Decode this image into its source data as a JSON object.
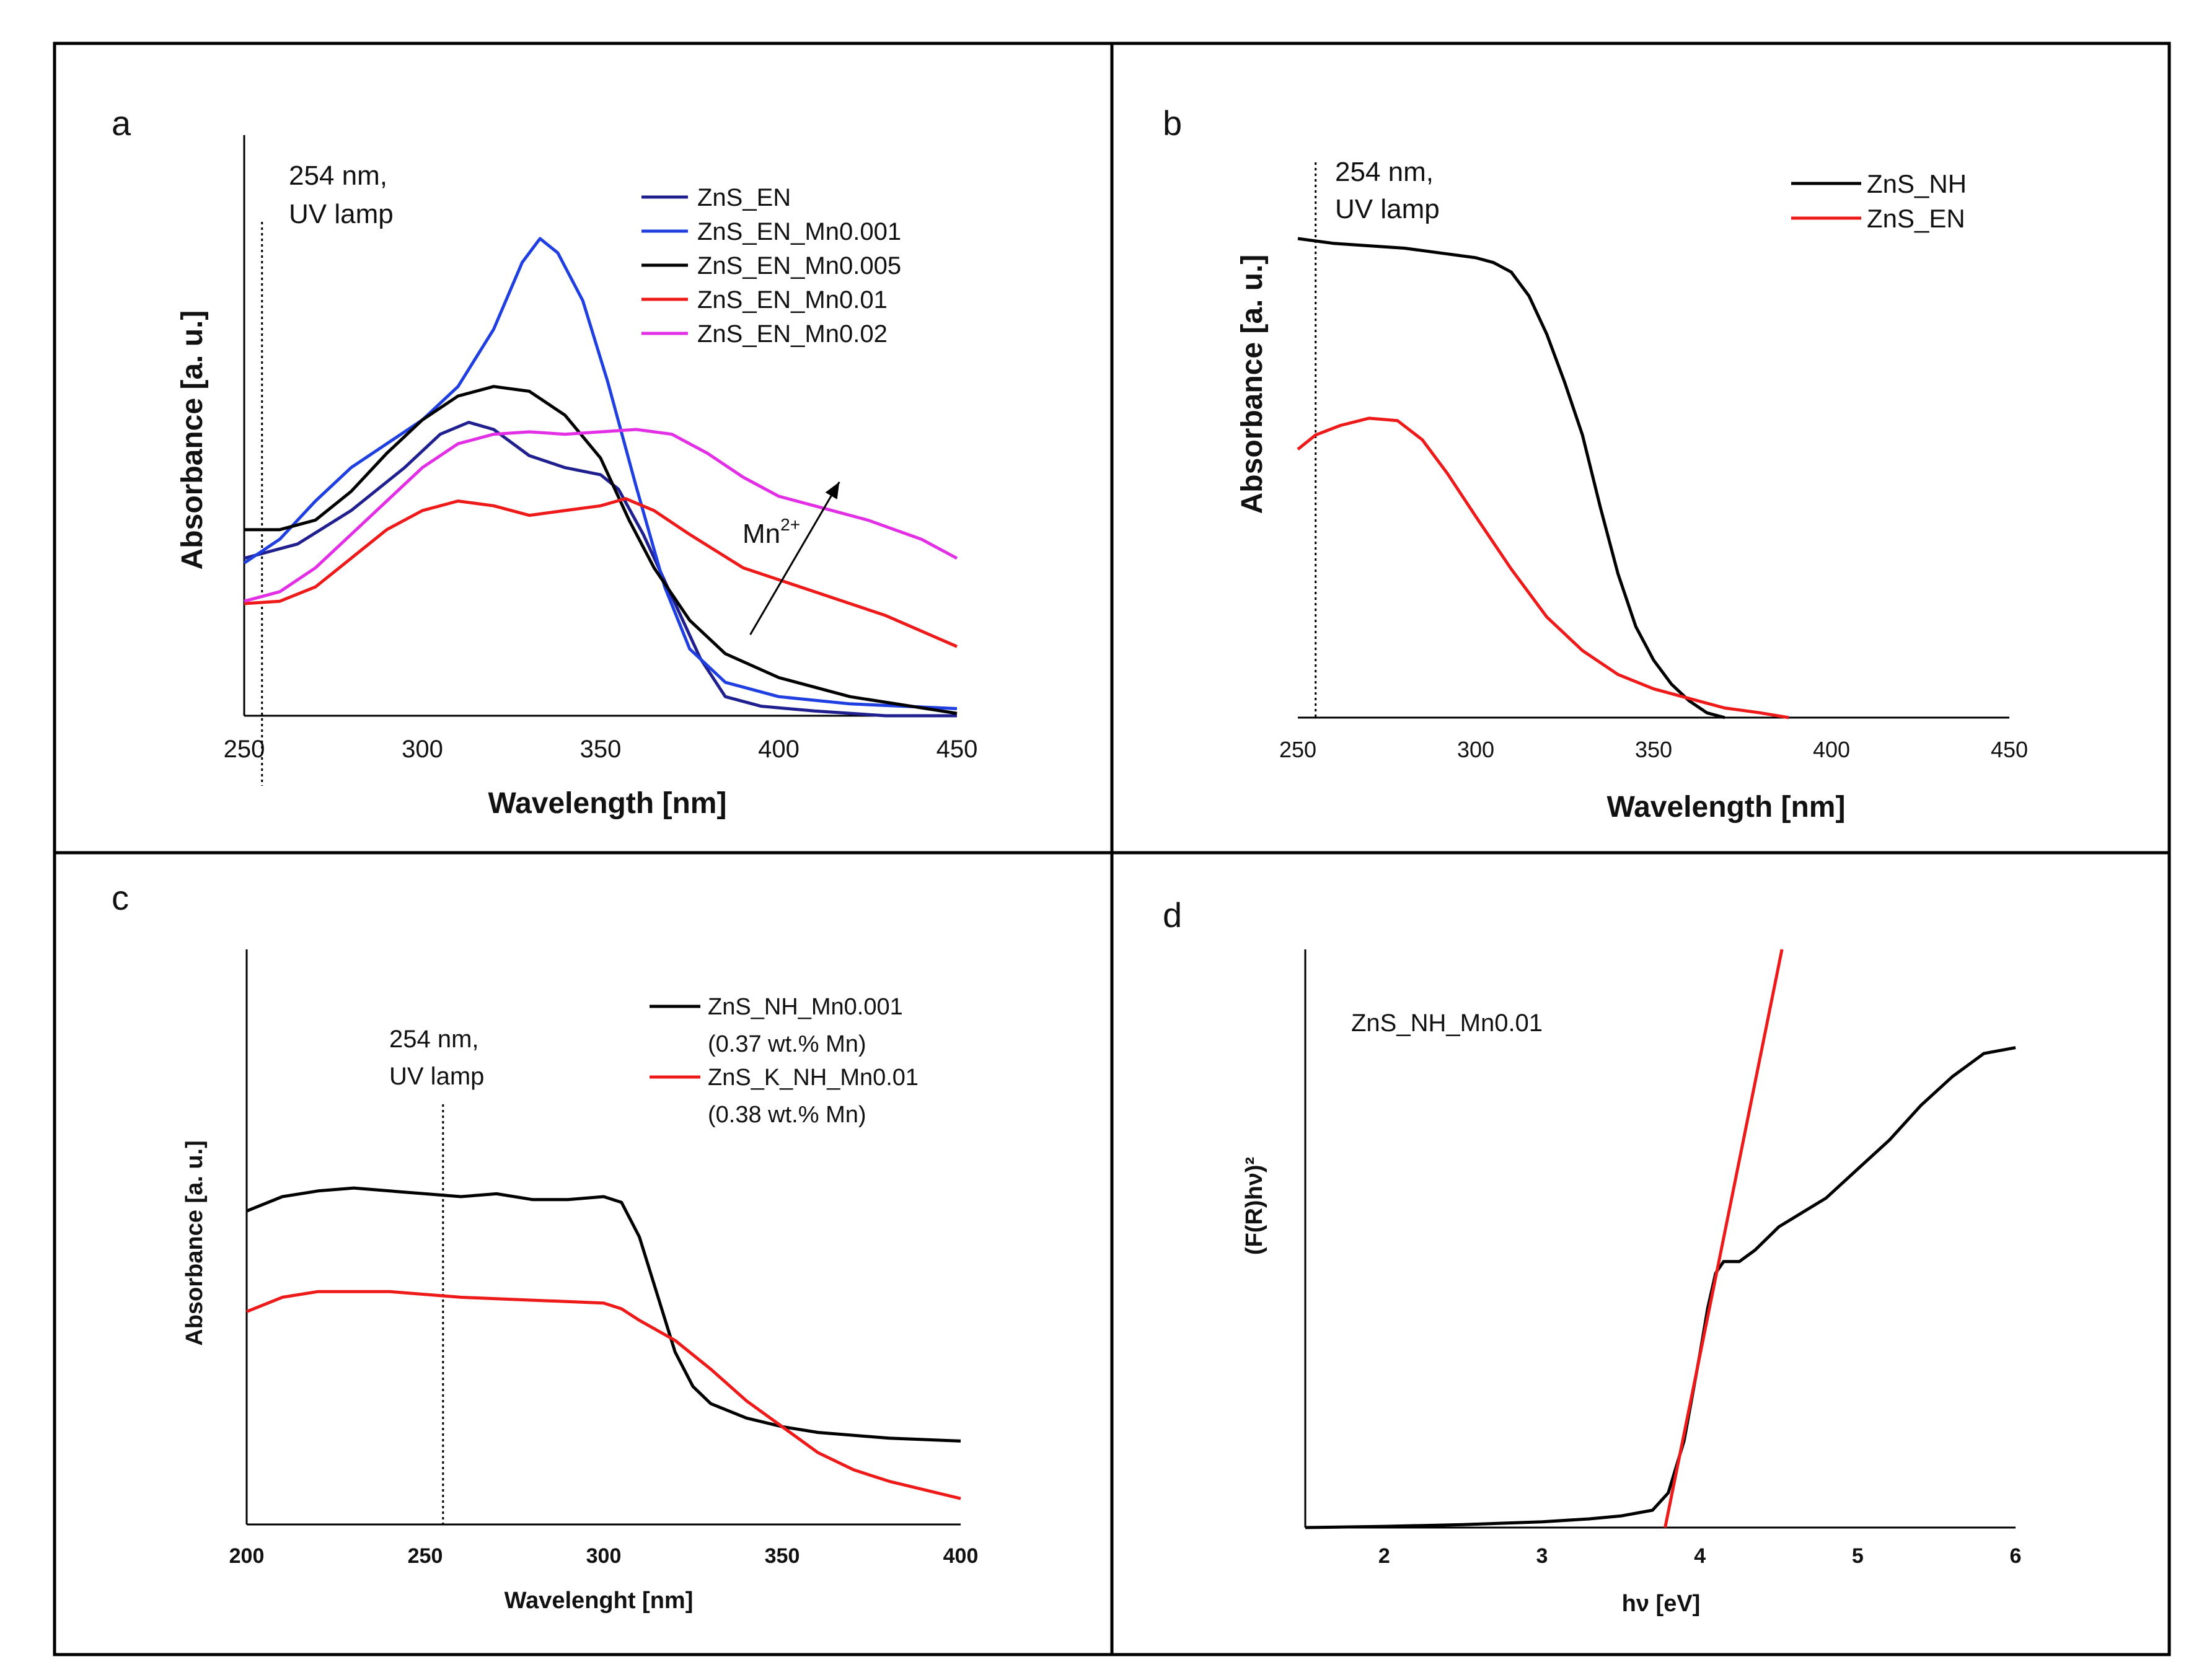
{
  "panels": [
    {
      "id": "a",
      "letter": "a",
      "type": "line",
      "xlabel": "Wavelength [nm]",
      "ylabel": "Absorbance [a. u.]",
      "xlim": [
        250,
        450
      ],
      "ylim": [
        0,
        1
      ],
      "xticks": [
        "250",
        "300",
        "350",
        "400",
        "450"
      ],
      "tick_values": [
        250,
        300,
        350,
        400,
        450
      ],
      "annotation_line": 255,
      "annotation": [
        "254 nm,",
        "UV lamp"
      ],
      "arrow_label": "Mn",
      "arrow_label_sup": "2+",
      "arrow": {
        "from": [
          392,
          0.17
        ],
        "to": [
          417,
          0.49
        ]
      },
      "series": [
        {
          "name": "ZnS_EN",
          "color": "#1f1f8f",
          "points": [
            [
              250,
              0.33
            ],
            [
              265,
              0.36
            ],
            [
              280,
              0.43
            ],
            [
              295,
              0.52
            ],
            [
              305,
              0.59
            ],
            [
              313,
              0.615
            ],
            [
              320,
              0.6
            ],
            [
              330,
              0.545
            ],
            [
              340,
              0.52
            ],
            [
              350,
              0.505
            ],
            [
              355,
              0.475
            ],
            [
              362,
              0.38
            ],
            [
              370,
              0.25
            ],
            [
              378,
              0.12
            ],
            [
              385,
              0.04
            ],
            [
              395,
              0.02
            ],
            [
              410,
              0.01
            ],
            [
              430,
              0.0
            ],
            [
              450,
              0.0
            ]
          ]
        },
        {
          "name": "ZnS_EN_Mn0.001",
          "color": "#1f3fe0",
          "points": [
            [
              250,
              0.32
            ],
            [
              260,
              0.37
            ],
            [
              270,
              0.45
            ],
            [
              280,
              0.52
            ],
            [
              290,
              0.57
            ],
            [
              300,
              0.62
            ],
            [
              310,
              0.69
            ],
            [
              320,
              0.81
            ],
            [
              328,
              0.95
            ],
            [
              333,
              1.0
            ],
            [
              338,
              0.97
            ],
            [
              345,
              0.87
            ],
            [
              352,
              0.7
            ],
            [
              360,
              0.48
            ],
            [
              368,
              0.27
            ],
            [
              375,
              0.14
            ],
            [
              385,
              0.07
            ],
            [
              400,
              0.04
            ],
            [
              420,
              0.025
            ],
            [
              450,
              0.015
            ]
          ]
        },
        {
          "name": "ZnS_EN_Mn0.005",
          "color": "#000000",
          "points": [
            [
              250,
              0.39
            ],
            [
              260,
              0.39
            ],
            [
              270,
              0.41
            ],
            [
              280,
              0.47
            ],
            [
              290,
              0.55
            ],
            [
              300,
              0.62
            ],
            [
              310,
              0.67
            ],
            [
              320,
              0.69
            ],
            [
              330,
              0.68
            ],
            [
              340,
              0.63
            ],
            [
              350,
              0.54
            ],
            [
              358,
              0.41
            ],
            [
              365,
              0.31
            ],
            [
              375,
              0.2
            ],
            [
              385,
              0.13
            ],
            [
              400,
              0.08
            ],
            [
              420,
              0.04
            ],
            [
              450,
              0.005
            ]
          ]
        },
        {
          "name": "ZnS_EN_Mn0.01",
          "color": "#ee1a1a",
          "points": [
            [
              250,
              0.235
            ],
            [
              260,
              0.24
            ],
            [
              270,
              0.27
            ],
            [
              280,
              0.33
            ],
            [
              290,
              0.39
            ],
            [
              300,
              0.43
            ],
            [
              310,
              0.45
            ],
            [
              320,
              0.44
            ],
            [
              330,
              0.42
            ],
            [
              340,
              0.43
            ],
            [
              350,
              0.44
            ],
            [
              357,
              0.455
            ],
            [
              365,
              0.43
            ],
            [
              375,
              0.38
            ],
            [
              390,
              0.31
            ],
            [
              410,
              0.26
            ],
            [
              430,
              0.21
            ],
            [
              450,
              0.145
            ]
          ]
        },
        {
          "name": "ZnS_EN_Mn0.02",
          "color": "#e22fe6",
          "points": [
            [
              250,
              0.24
            ],
            [
              260,
              0.26
            ],
            [
              270,
              0.31
            ],
            [
              280,
              0.38
            ],
            [
              290,
              0.45
            ],
            [
              300,
              0.52
            ],
            [
              310,
              0.57
            ],
            [
              320,
              0.59
            ],
            [
              330,
              0.595
            ],
            [
              340,
              0.59
            ],
            [
              360,
              0.6
            ],
            [
              370,
              0.59
            ],
            [
              380,
              0.55
            ],
            [
              390,
              0.5
            ],
            [
              400,
              0.46
            ],
            [
              410,
              0.44
            ],
            [
              425,
              0.41
            ],
            [
              440,
              0.37
            ],
            [
              450,
              0.33
            ]
          ]
        }
      ]
    },
    {
      "id": "b",
      "letter": "b",
      "type": "line",
      "xlabel": "Wavelength [nm]",
      "ylabel": "Absorbance [a. u.]",
      "xlim": [
        250,
        450
      ],
      "ylim": [
        0,
        1
      ],
      "xticks": [
        "250",
        "300",
        "350",
        "400",
        "450"
      ],
      "tick_values": [
        250,
        300,
        350,
        400,
        450
      ],
      "annotation_line": 255,
      "annotation": [
        "254 nm,",
        "UV lamp"
      ],
      "series": [
        {
          "name": "ZnS_NH",
          "color": "#000000",
          "points": [
            [
              250,
              1.0
            ],
            [
              260,
              0.99
            ],
            [
              270,
              0.985
            ],
            [
              280,
              0.98
            ],
            [
              290,
              0.97
            ],
            [
              300,
              0.96
            ],
            [
              305,
              0.95
            ],
            [
              310,
              0.93
            ],
            [
              315,
              0.88
            ],
            [
              320,
              0.8
            ],
            [
              325,
              0.7
            ],
            [
              330,
              0.59
            ],
            [
              335,
              0.44
            ],
            [
              340,
              0.3
            ],
            [
              345,
              0.19
            ],
            [
              350,
              0.12
            ],
            [
              355,
              0.07
            ],
            [
              360,
              0.035
            ],
            [
              365,
              0.01
            ],
            [
              370,
              0.0
            ]
          ]
        },
        {
          "name": "ZnS_EN",
          "color": "#ee1a1a",
          "points": [
            [
              250,
              0.56
            ],
            [
              255,
              0.59
            ],
            [
              262,
              0.61
            ],
            [
              270,
              0.625
            ],
            [
              278,
              0.62
            ],
            [
              285,
              0.58
            ],
            [
              292,
              0.51
            ],
            [
              300,
              0.42
            ],
            [
              310,
              0.31
            ],
            [
              320,
              0.21
            ],
            [
              330,
              0.14
            ],
            [
              340,
              0.09
            ],
            [
              350,
              0.06
            ],
            [
              360,
              0.04
            ],
            [
              370,
              0.02
            ],
            [
              380,
              0.01
            ],
            [
              388,
              0.0
            ]
          ]
        }
      ]
    },
    {
      "id": "c",
      "letter": "c",
      "type": "line",
      "xlabel": "Wavelenght [nm]",
      "ylabel": "Absorbance [a. u.]",
      "xlim": [
        200,
        400
      ],
      "ylim": [
        0,
        1
      ],
      "xticks": [
        "200",
        "250",
        "300",
        "350",
        "400"
      ],
      "tick_values": [
        200,
        250,
        300,
        350,
        400
      ],
      "annotation_line": 255,
      "annotation": [
        "254 nm,",
        "UV lamp"
      ],
      "legend_notes": [
        "(0.37 wt.% Mn)",
        "(0.38  wt.% Mn)"
      ],
      "series": [
        {
          "name": "ZnS_NH_Mn0.001",
          "color": "#000000",
          "points": [
            [
              200,
              0.545
            ],
            [
              210,
              0.57
            ],
            [
              220,
              0.58
            ],
            [
              230,
              0.585
            ],
            [
              240,
              0.58
            ],
            [
              250,
              0.575
            ],
            [
              260,
              0.57
            ],
            [
              270,
              0.575
            ],
            [
              280,
              0.565
            ],
            [
              290,
              0.565
            ],
            [
              300,
              0.57
            ],
            [
              305,
              0.56
            ],
            [
              310,
              0.5
            ],
            [
              315,
              0.4
            ],
            [
              320,
              0.3
            ],
            [
              325,
              0.24
            ],
            [
              330,
              0.21
            ],
            [
              340,
              0.185
            ],
            [
              350,
              0.17
            ],
            [
              360,
              0.16
            ],
            [
              380,
              0.15
            ],
            [
              400,
              0.145
            ]
          ]
        },
        {
          "name": "ZnS_K_NH_Mn0.01",
          "color": "#ee1a1a",
          "points": [
            [
              200,
              0.37
            ],
            [
              210,
              0.395
            ],
            [
              220,
              0.405
            ],
            [
              240,
              0.405
            ],
            [
              260,
              0.395
            ],
            [
              280,
              0.39
            ],
            [
              300,
              0.385
            ],
            [
              305,
              0.375
            ],
            [
              310,
              0.355
            ],
            [
              320,
              0.32
            ],
            [
              330,
              0.27
            ],
            [
              340,
              0.215
            ],
            [
              350,
              0.17
            ],
            [
              360,
              0.125
            ],
            [
              370,
              0.095
            ],
            [
              380,
              0.075
            ],
            [
              390,
              0.06
            ],
            [
              400,
              0.045
            ]
          ]
        }
      ]
    },
    {
      "id": "d",
      "letter": "d",
      "type": "line",
      "xlabel": "hν [eV]",
      "ylabel": "(F(R)hν)²",
      "xlim": [
        1.5,
        6
      ],
      "ylim": [
        0,
        1
      ],
      "xticks": [
        "2",
        "3",
        "4",
        "5",
        "6"
      ],
      "tick_values": [
        2,
        3,
        4,
        5,
        6
      ],
      "annotation_line": null,
      "annotation": [
        "ZnS_NH_Mn0.01"
      ],
      "series": [
        {
          "name": "",
          "color": "#000000",
          "points": [
            [
              1.5,
              0.0
            ],
            [
              2.0,
              0.002
            ],
            [
              2.5,
              0.005
            ],
            [
              3.0,
              0.01
            ],
            [
              3.3,
              0.015
            ],
            [
              3.5,
              0.02
            ],
            [
              3.7,
              0.03
            ],
            [
              3.8,
              0.06
            ],
            [
              3.9,
              0.15
            ],
            [
              4.0,
              0.3
            ],
            [
              4.05,
              0.38
            ],
            [
              4.1,
              0.44
            ],
            [
              4.15,
              0.46
            ],
            [
              4.25,
              0.46
            ],
            [
              4.35,
              0.48
            ],
            [
              4.5,
              0.52
            ],
            [
              4.8,
              0.57
            ],
            [
              5.0,
              0.62
            ],
            [
              5.2,
              0.67
            ],
            [
              5.4,
              0.73
            ],
            [
              5.6,
              0.78
            ],
            [
              5.8,
              0.82
            ],
            [
              6.0,
              0.83
            ]
          ]
        },
        {
          "name": "",
          "color": "#ee1a1a",
          "points": [
            [
              3.78,
              0.0
            ],
            [
              4.52,
              1.0
            ]
          ]
        }
      ]
    }
  ]
}
